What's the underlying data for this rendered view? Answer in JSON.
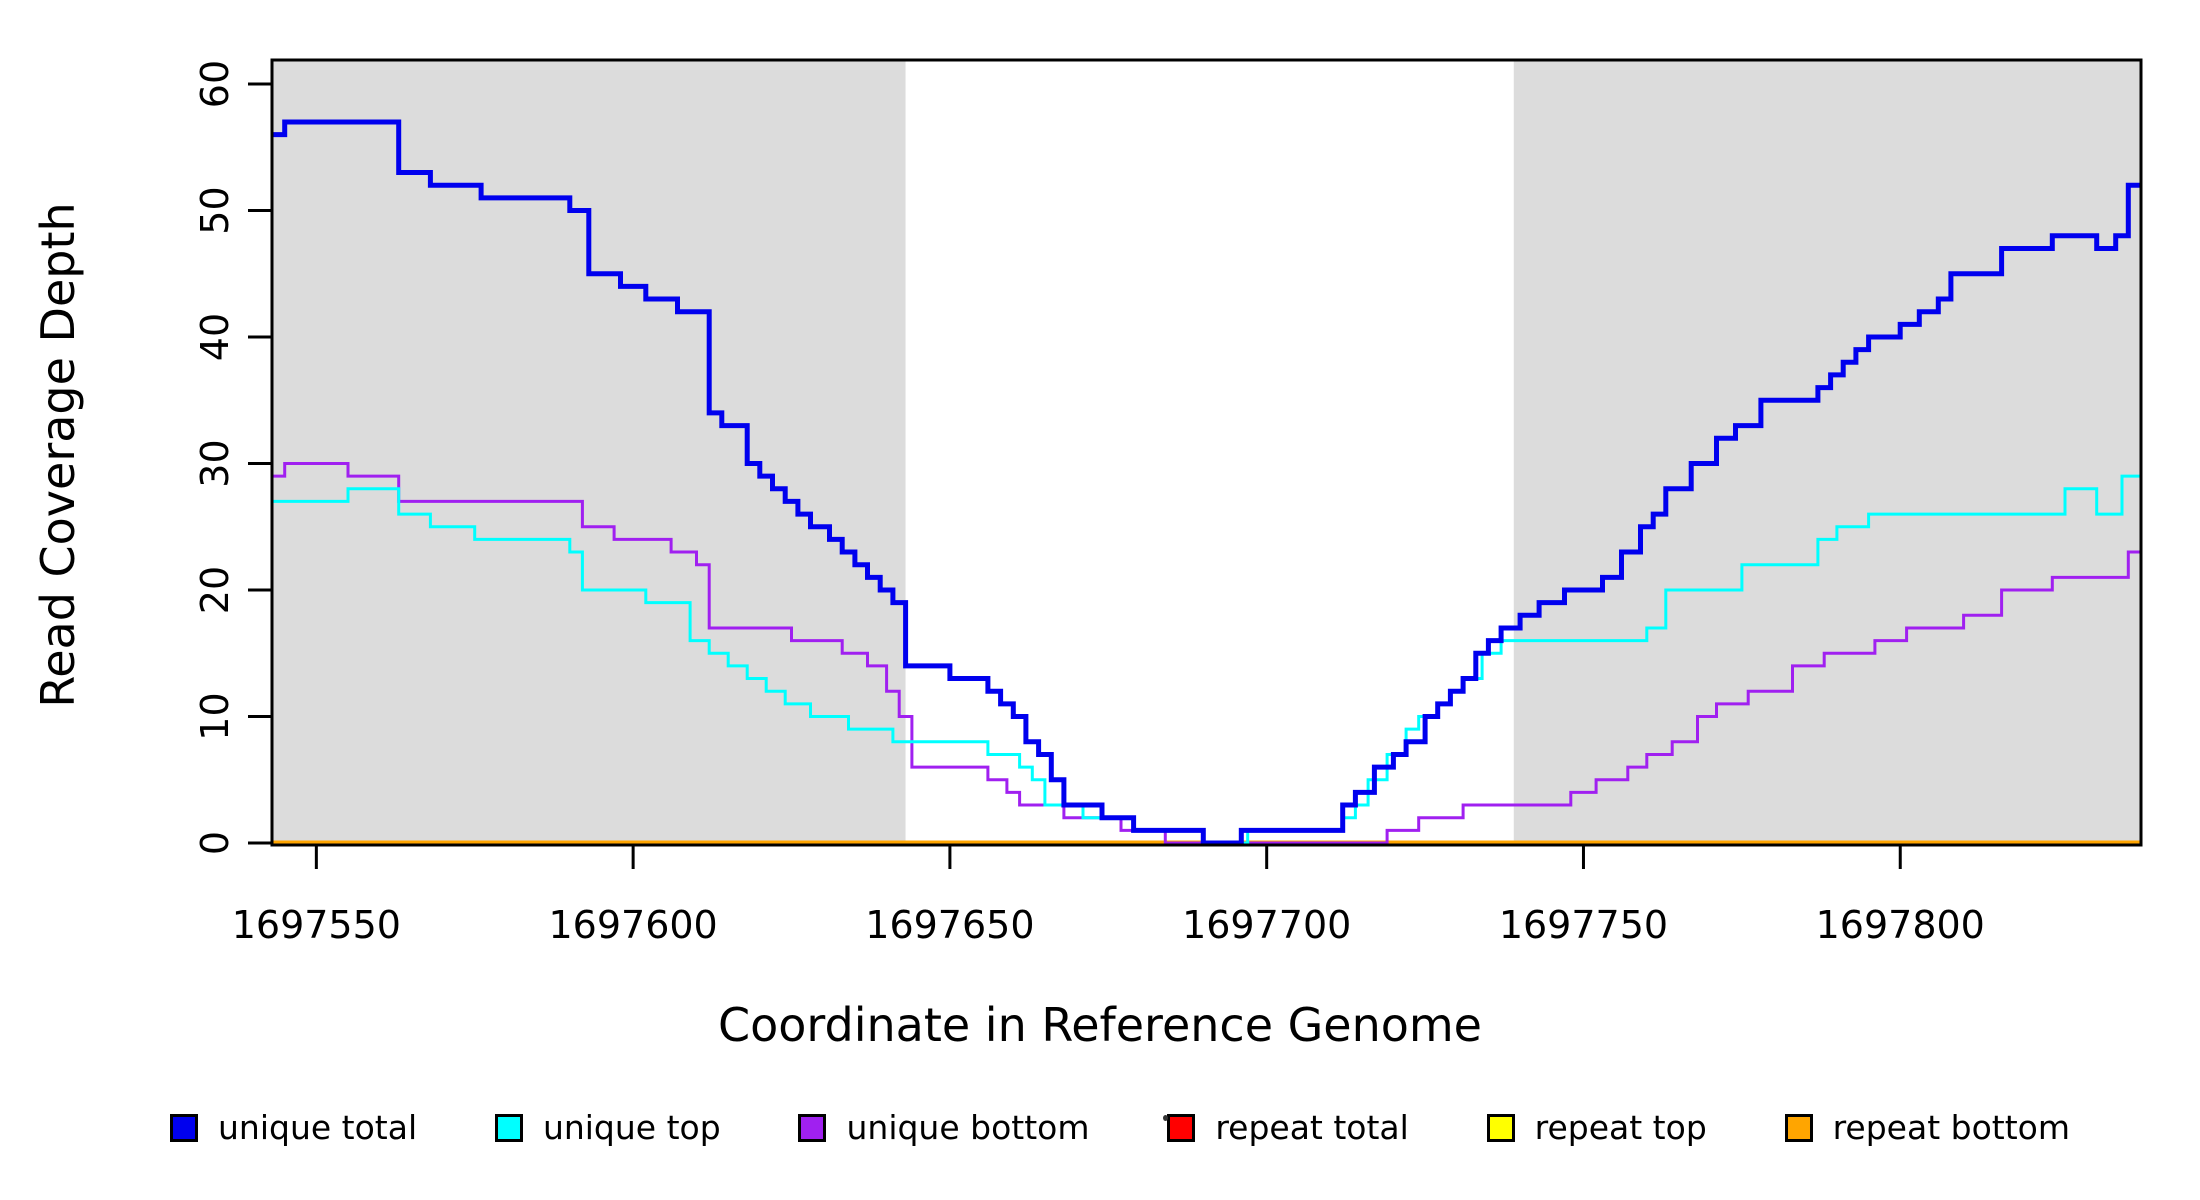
{
  "chart_data": {
    "type": "line",
    "subtype": "step-after",
    "title": "",
    "xlabel": "Coordinate in Reference Genome",
    "ylabel": "Read Coverage Depth",
    "xlim": [
      1697543,
      1697838
    ],
    "ylim": [
      0,
      62
    ],
    "xticks": [
      1697550,
      1697600,
      1697650,
      1697700,
      1697750,
      1697800
    ],
    "yticks": [
      0,
      10,
      20,
      30,
      40,
      50,
      60
    ],
    "grid": false,
    "legend_position": "bottom",
    "shade_color": "#DCDCDC",
    "shaded_regions": [
      [
        1697543,
        1697643
      ],
      [
        1697739,
        1697838
      ]
    ],
    "series": [
      {
        "name": "repeat total",
        "color": "#FF0000",
        "width": 5,
        "points": [
          [
            1697543,
            0
          ]
        ]
      },
      {
        "name": "repeat top",
        "color": "#FFFF00",
        "width": 5,
        "points": [
          [
            1697543,
            0
          ]
        ]
      },
      {
        "name": "repeat bottom",
        "color": "#FFA500",
        "width": 5,
        "points": [
          [
            1697543,
            0
          ]
        ]
      },
      {
        "name": "unique bottom",
        "color": "#A020F0",
        "width": 3,
        "points": [
          [
            1697543,
            29
          ],
          [
            1697545,
            30
          ],
          [
            1697555,
            29
          ],
          [
            1697563,
            27
          ],
          [
            1697592,
            25
          ],
          [
            1697597,
            24
          ],
          [
            1697606,
            23
          ],
          [
            1697610,
            22
          ],
          [
            1697612,
            17
          ],
          [
            1697625,
            16
          ],
          [
            1697633,
            15
          ],
          [
            1697637,
            14
          ],
          [
            1697640,
            12
          ],
          [
            1697642,
            10
          ],
          [
            1697644,
            6
          ],
          [
            1697656,
            5
          ],
          [
            1697659,
            4
          ],
          [
            1697661,
            3
          ],
          [
            1697668,
            2
          ],
          [
            1697677,
            1
          ],
          [
            1697684,
            0
          ],
          [
            1697719,
            1
          ],
          [
            1697724,
            2
          ],
          [
            1697731,
            3
          ],
          [
            1697748,
            4
          ],
          [
            1697752,
            5
          ],
          [
            1697757,
            6
          ],
          [
            1697760,
            7
          ],
          [
            1697764,
            8
          ],
          [
            1697768,
            10
          ],
          [
            1697771,
            11
          ],
          [
            1697776,
            12
          ],
          [
            1697783,
            14
          ],
          [
            1697788,
            15
          ],
          [
            1697796,
            16
          ],
          [
            1697801,
            17
          ],
          [
            1697810,
            18
          ],
          [
            1697816,
            20
          ],
          [
            1697824,
            21
          ],
          [
            1697836,
            23
          ]
        ]
      },
      {
        "name": "unique top",
        "color": "#00FFFF",
        "width": 3,
        "points": [
          [
            1697543,
            27
          ],
          [
            1697555,
            28
          ],
          [
            1697563,
            26
          ],
          [
            1697568,
            25
          ],
          [
            1697575,
            24
          ],
          [
            1697590,
            23
          ],
          [
            1697592,
            20
          ],
          [
            1697602,
            19
          ],
          [
            1697609,
            16
          ],
          [
            1697612,
            15
          ],
          [
            1697615,
            14
          ],
          [
            1697618,
            13
          ],
          [
            1697621,
            12
          ],
          [
            1697624,
            11
          ],
          [
            1697628,
            10
          ],
          [
            1697634,
            9
          ],
          [
            1697641,
            8
          ],
          [
            1697656,
            7
          ],
          [
            1697661,
            6
          ],
          [
            1697663,
            5
          ],
          [
            1697665,
            3
          ],
          [
            1697671,
            2
          ],
          [
            1697679,
            1
          ],
          [
            1697690,
            0
          ],
          [
            1697697,
            1
          ],
          [
            1697712,
            2
          ],
          [
            1697714,
            3
          ],
          [
            1697716,
            5
          ],
          [
            1697719,
            7
          ],
          [
            1697722,
            9
          ],
          [
            1697724,
            10
          ],
          [
            1697727,
            11
          ],
          [
            1697729,
            12
          ],
          [
            1697731,
            13
          ],
          [
            1697734,
            15
          ],
          [
            1697737,
            16
          ],
          [
            1697760,
            17
          ],
          [
            1697763,
            20
          ],
          [
            1697775,
            22
          ],
          [
            1697787,
            24
          ],
          [
            1697790,
            25
          ],
          [
            1697795,
            26
          ],
          [
            1697826,
            28
          ],
          [
            1697831,
            26
          ],
          [
            1697835,
            29
          ]
        ]
      },
      {
        "name": "unique total",
        "color": "#0000EE",
        "width": 5,
        "points": [
          [
            1697543,
            56
          ],
          [
            1697545,
            57
          ],
          [
            1697563,
            53
          ],
          [
            1697568,
            52
          ],
          [
            1697576,
            51
          ],
          [
            1697590,
            50
          ],
          [
            1697593,
            45
          ],
          [
            1697598,
            44
          ],
          [
            1697602,
            43
          ],
          [
            1697607,
            42
          ],
          [
            1697612,
            34
          ],
          [
            1697614,
            33
          ],
          [
            1697618,
            30
          ],
          [
            1697620,
            29
          ],
          [
            1697622,
            28
          ],
          [
            1697624,
            27
          ],
          [
            1697626,
            26
          ],
          [
            1697628,
            25
          ],
          [
            1697631,
            24
          ],
          [
            1697633,
            23
          ],
          [
            1697635,
            22
          ],
          [
            1697637,
            21
          ],
          [
            1697639,
            20
          ],
          [
            1697641,
            19
          ],
          [
            1697643,
            14
          ],
          [
            1697650,
            13
          ],
          [
            1697656,
            12
          ],
          [
            1697658,
            11
          ],
          [
            1697660,
            10
          ],
          [
            1697662,
            8
          ],
          [
            1697664,
            7
          ],
          [
            1697666,
            5
          ],
          [
            1697668,
            3
          ],
          [
            1697674,
            2
          ],
          [
            1697679,
            1
          ],
          [
            1697690,
            0
          ],
          [
            1697696,
            1
          ],
          [
            1697712,
            3
          ],
          [
            1697714,
            4
          ],
          [
            1697717,
            6
          ],
          [
            1697720,
            7
          ],
          [
            1697722,
            8
          ],
          [
            1697725,
            10
          ],
          [
            1697727,
            11
          ],
          [
            1697729,
            12
          ],
          [
            1697731,
            13
          ],
          [
            1697733,
            15
          ],
          [
            1697735,
            16
          ],
          [
            1697737,
            17
          ],
          [
            1697740,
            18
          ],
          [
            1697743,
            19
          ],
          [
            1697747,
            20
          ],
          [
            1697753,
            21
          ],
          [
            1697756,
            23
          ],
          [
            1697759,
            25
          ],
          [
            1697761,
            26
          ],
          [
            1697763,
            28
          ],
          [
            1697767,
            30
          ],
          [
            1697771,
            32
          ],
          [
            1697774,
            33
          ],
          [
            1697778,
            35
          ],
          [
            1697787,
            36
          ],
          [
            1697789,
            37
          ],
          [
            1697791,
            38
          ],
          [
            1697793,
            39
          ],
          [
            1697795,
            40
          ],
          [
            1697800,
            41
          ],
          [
            1697803,
            42
          ],
          [
            1697806,
            43
          ],
          [
            1697808,
            45
          ],
          [
            1697816,
            47
          ],
          [
            1697824,
            48
          ],
          [
            1697831,
            47
          ],
          [
            1697834,
            48
          ],
          [
            1697836,
            52
          ]
        ]
      }
    ],
    "legend": [
      {
        "label": "unique total",
        "color": "#0000EE"
      },
      {
        "label": "unique top",
        "color": "#00FFFF"
      },
      {
        "label": "unique bottom",
        "color": "#A020F0"
      },
      {
        "label": "repeat total",
        "color": "#FF0000"
      },
      {
        "label": "repeat top",
        "color": "#FFFF00"
      },
      {
        "label": "repeat bottom",
        "color": "#FFA500"
      }
    ]
  }
}
